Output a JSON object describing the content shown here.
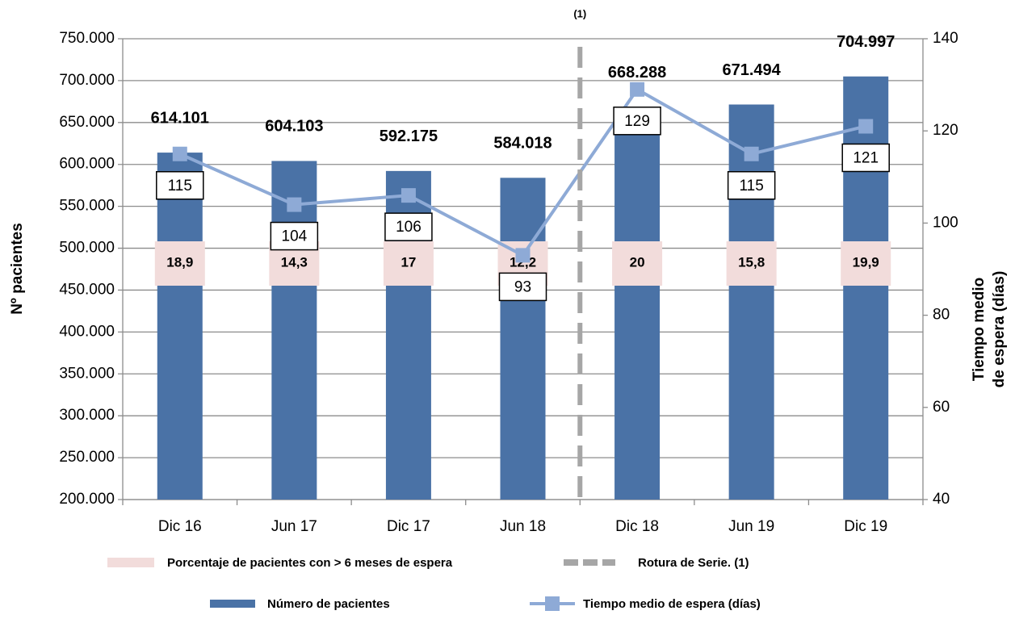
{
  "chart_data": {
    "type": "bar_line",
    "categories": [
      "Dic 16",
      "Jun 17",
      "Dic 17",
      "Jun 18",
      "Dic 18",
      "Jun 19",
      "Dic 19"
    ],
    "ylabel": "Nº pacientes",
    "y2label": [
      "Tiempo medio",
      "de espera (días)"
    ],
    "ylim": [
      200000,
      750000
    ],
    "yticks": [
      {
        "value": 200000,
        "label": "200.000"
      },
      {
        "value": 250000,
        "label": "250.000"
      },
      {
        "value": 300000,
        "label": "300.000"
      },
      {
        "value": 350000,
        "label": "350.000"
      },
      {
        "value": 400000,
        "label": "400.000"
      },
      {
        "value": 450000,
        "label": "450.000"
      },
      {
        "value": 500000,
        "label": "500.000"
      },
      {
        "value": 550000,
        "label": "550.000"
      },
      {
        "value": 600000,
        "label": "600.000"
      },
      {
        "value": 650000,
        "label": "650.000"
      },
      {
        "value": 700000,
        "label": "700.000"
      },
      {
        "value": 750000,
        "label": "750.000"
      }
    ],
    "y2lim": [
      40,
      140
    ],
    "y2ticks": [
      40,
      60,
      80,
      100,
      120,
      140
    ],
    "grid": true,
    "series": [
      {
        "name": "Número de pacientes",
        "kind": "bar",
        "color": "#4a72a6",
        "values": [
          614101,
          604103,
          592175,
          584018,
          668288,
          671494,
          704997
        ],
        "value_labels": [
          "614.101",
          "604.103",
          "592.175",
          "584.018",
          "668.288",
          "671.494",
          "704.997"
        ]
      },
      {
        "name": "Tiempo medio de espera (días)",
        "kind": "line",
        "axis": "y2",
        "color": "#8eaad6",
        "values": [
          115,
          104,
          106,
          93,
          129,
          115,
          121
        ]
      },
      {
        "name": "Porcentaje de pacientes con > 6 meses  de espera",
        "kind": "box",
        "color": "#f2dcdb",
        "values": [
          18.9,
          14.3,
          17,
          12.2,
          20,
          15.8,
          19.9
        ],
        "value_labels": [
          "18,9",
          "14,3",
          "17",
          "12,2",
          "20",
          "15,8",
          "19,9"
        ]
      }
    ],
    "series_break": {
      "name": "Rotura de Serie. (1)",
      "label": "(1)",
      "color": "#a6a6a6"
    }
  }
}
